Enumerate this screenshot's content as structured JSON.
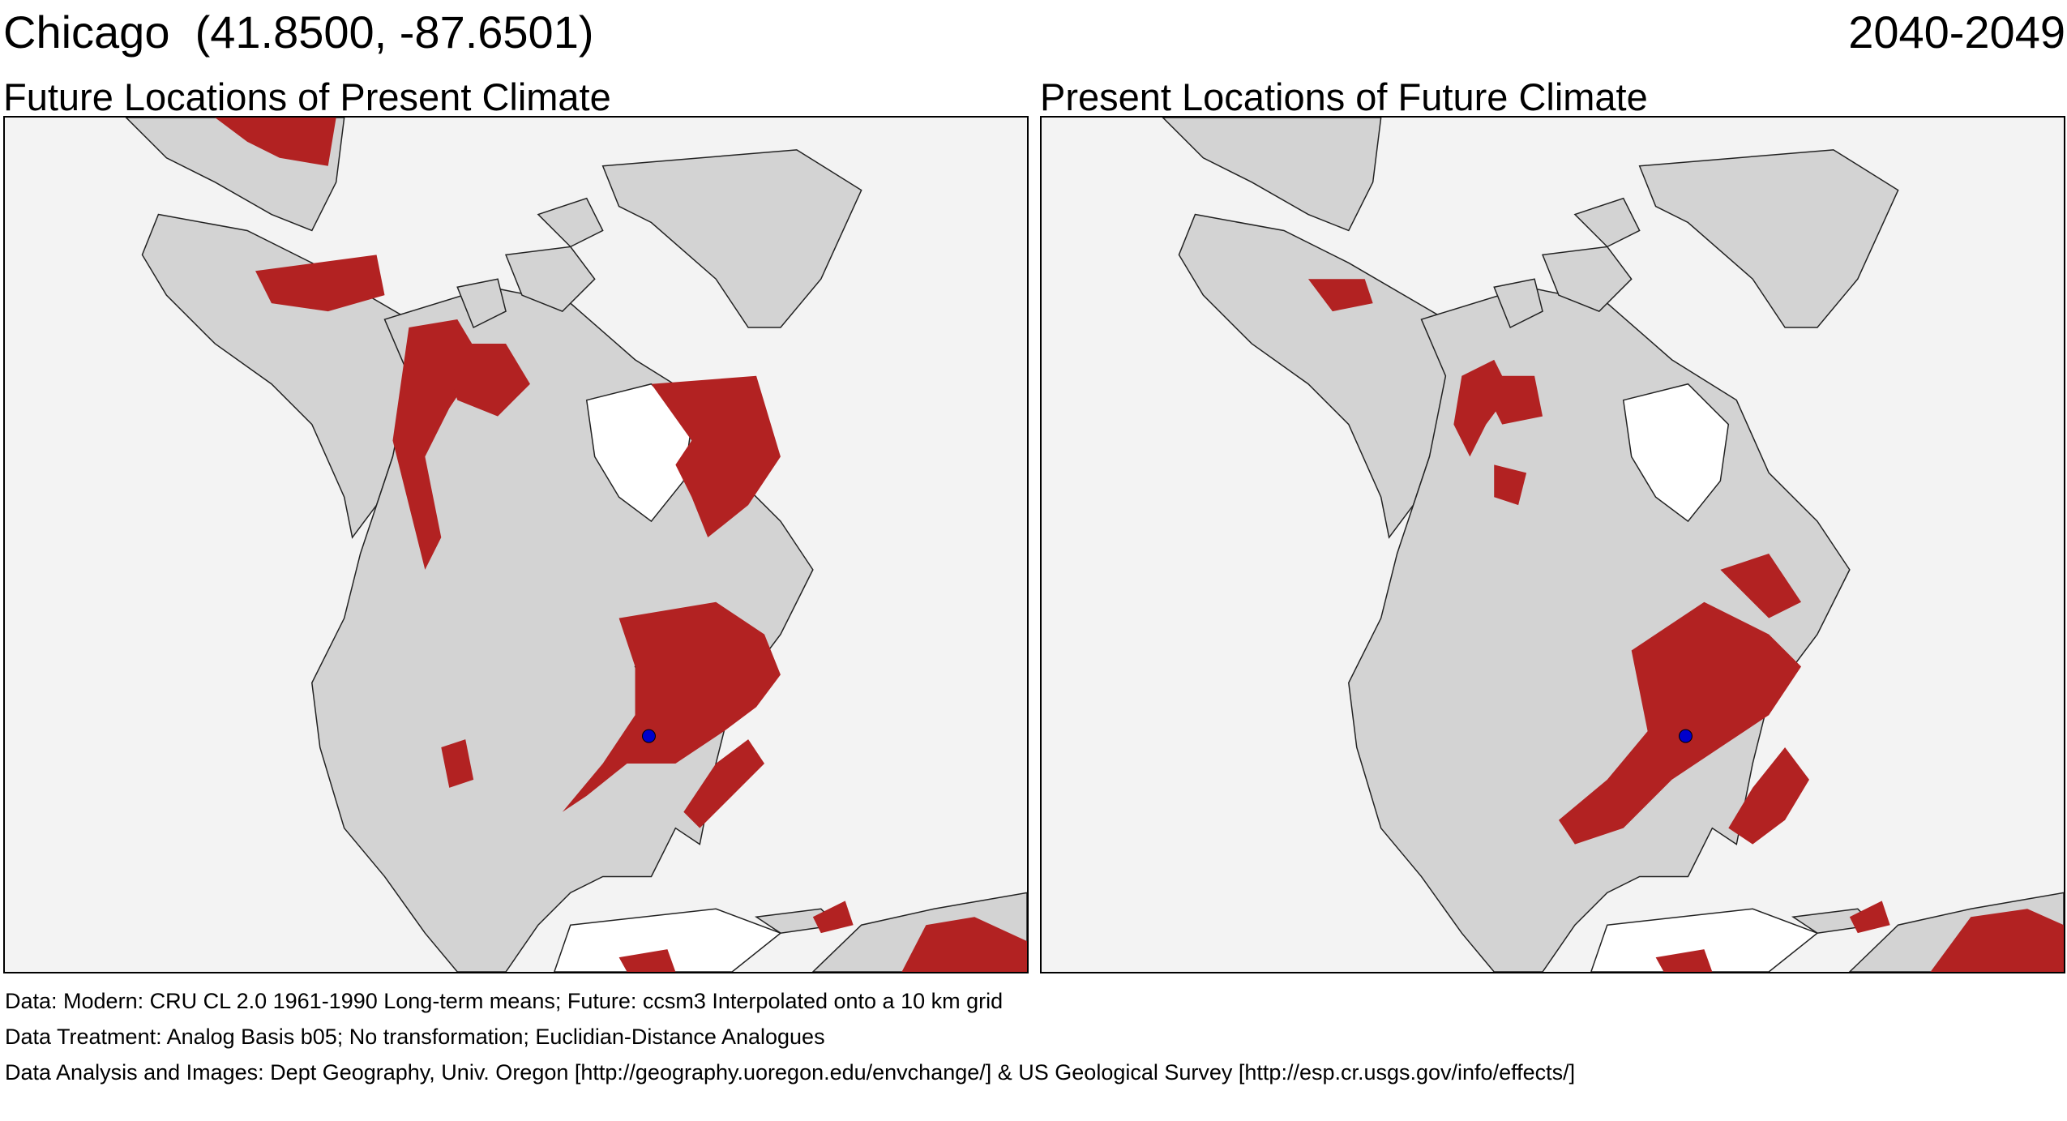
{
  "header": {
    "location": "Chicago  (41.8500, -87.6501)",
    "period": "2040-2049"
  },
  "panels": [
    {
      "id": "left",
      "title": "Future Locations of Present Climate"
    },
    {
      "id": "right",
      "title": "Present Locations of Future Climate"
    }
  ],
  "colors": {
    "analog": "#b22222",
    "land": "#d3d3d3",
    "water": "#ffffff",
    "background": "#f3f3f3",
    "city_marker": "#0000cc"
  },
  "footer": {
    "data": "Data:  Modern: CRU CL 2.0 1961-1990 Long-term means; Future: ccsm3 Interpolated onto a 10 km grid",
    "treatment": "Data Treatment:  Analog Basis b05; No transformation; Euclidian-Distance Analogues",
    "analysis": "Data Analysis and Images:  Dept Geography, Univ. Oregon [http://geography.uoregon.edu/envchange/] & US Geological Survey [http://esp.cr.usgs.gov/info/effects/]"
  }
}
